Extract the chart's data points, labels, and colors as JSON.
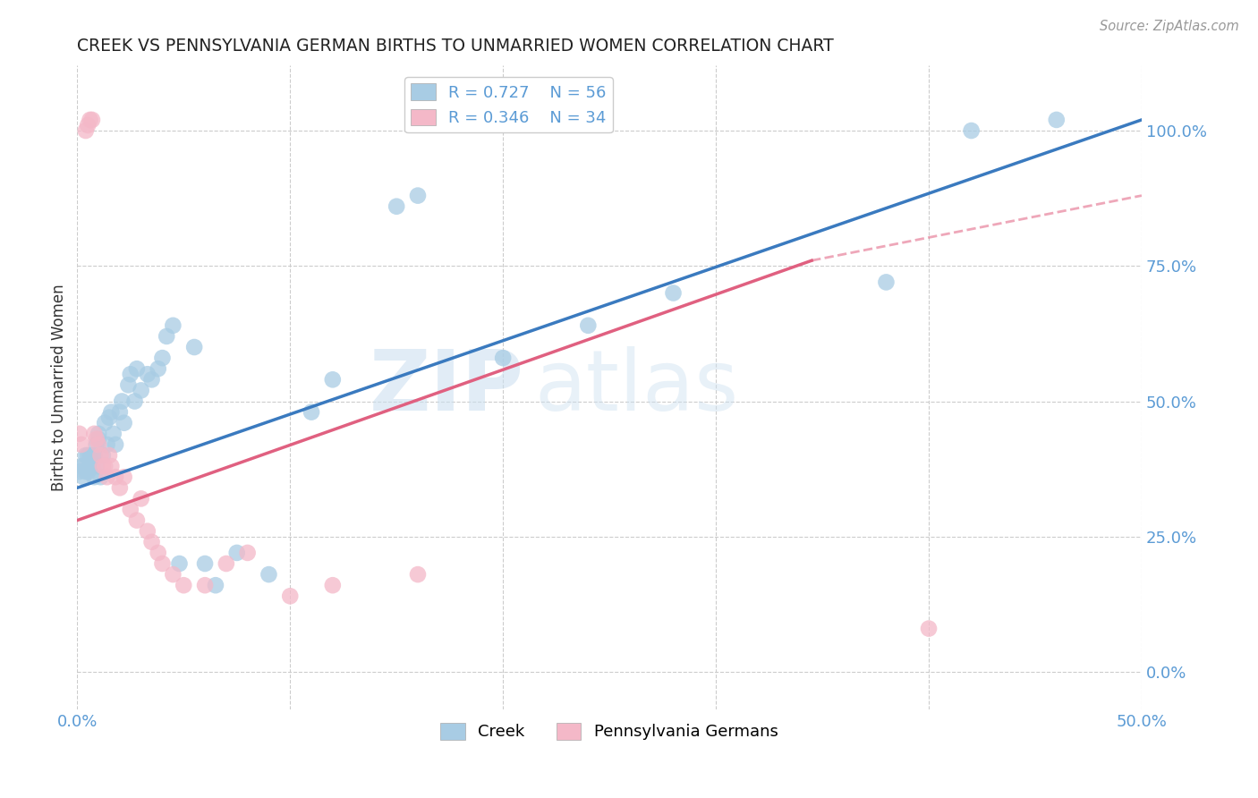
{
  "title": "CREEK VS PENNSYLVANIA GERMAN BIRTHS TO UNMARRIED WOMEN CORRELATION CHART",
  "source": "Source: ZipAtlas.com",
  "ylabel": "Births to Unmarried Women",
  "legend_labels": [
    "Creek",
    "Pennsylvania Germans"
  ],
  "creek_R": 0.727,
  "creek_N": 56,
  "pg_R": 0.346,
  "pg_N": 34,
  "xmin": 0.0,
  "xmax": 0.5,
  "ymin": -0.07,
  "ymax": 1.12,
  "yticks": [
    0.0,
    0.25,
    0.5,
    0.75,
    1.0
  ],
  "ytick_labels": [
    "0.0%",
    "25.0%",
    "50.0%",
    "75.0%",
    "100.0%"
  ],
  "xticks": [
    0.0,
    0.1,
    0.2,
    0.3,
    0.4,
    0.5
  ],
  "xtick_labels": [
    "0.0%",
    "",
    "",
    "",
    "",
    "50.0%"
  ],
  "creek_color": "#a8cce4",
  "pg_color": "#f4b8c8",
  "creek_line_color": "#3a7abf",
  "pg_line_color": "#e06080",
  "axis_color": "#5b9bd5",
  "grid_color": "#cccccc",
  "watermark_zip": "ZIP",
  "watermark_atlas": "atlas",
  "creek_x": [
    0.001,
    0.002,
    0.003,
    0.003,
    0.004,
    0.004,
    0.005,
    0.005,
    0.006,
    0.006,
    0.007,
    0.007,
    0.008,
    0.008,
    0.009,
    0.009,
    0.01,
    0.01,
    0.011,
    0.012,
    0.013,
    0.014,
    0.015,
    0.016,
    0.017,
    0.018,
    0.02,
    0.021,
    0.022,
    0.024,
    0.025,
    0.027,
    0.028,
    0.03,
    0.033,
    0.035,
    0.038,
    0.04,
    0.042,
    0.045,
    0.048,
    0.055,
    0.06,
    0.065,
    0.075,
    0.09,
    0.11,
    0.12,
    0.15,
    0.16,
    0.2,
    0.24,
    0.28,
    0.38,
    0.42,
    0.46
  ],
  "creek_y": [
    0.37,
    0.38,
    0.36,
    0.38,
    0.37,
    0.4,
    0.37,
    0.4,
    0.38,
    0.4,
    0.38,
    0.4,
    0.36,
    0.4,
    0.38,
    0.42,
    0.44,
    0.43,
    0.36,
    0.4,
    0.46,
    0.42,
    0.47,
    0.48,
    0.44,
    0.42,
    0.48,
    0.5,
    0.46,
    0.53,
    0.55,
    0.5,
    0.56,
    0.52,
    0.55,
    0.54,
    0.56,
    0.58,
    0.62,
    0.64,
    0.2,
    0.6,
    0.2,
    0.16,
    0.22,
    0.18,
    0.48,
    0.54,
    0.86,
    0.88,
    0.58,
    0.64,
    0.7,
    0.72,
    1.0,
    1.02
  ],
  "pg_x": [
    0.001,
    0.002,
    0.004,
    0.005,
    0.006,
    0.007,
    0.008,
    0.009,
    0.01,
    0.011,
    0.012,
    0.013,
    0.014,
    0.015,
    0.016,
    0.018,
    0.02,
    0.022,
    0.025,
    0.028,
    0.03,
    0.033,
    0.035,
    0.038,
    0.04,
    0.045,
    0.05,
    0.06,
    0.07,
    0.08,
    0.1,
    0.12,
    0.16,
    0.4
  ],
  "pg_y": [
    0.44,
    0.42,
    1.0,
    1.01,
    1.02,
    1.02,
    0.44,
    0.43,
    0.42,
    0.4,
    0.38,
    0.38,
    0.36,
    0.4,
    0.38,
    0.36,
    0.34,
    0.36,
    0.3,
    0.28,
    0.32,
    0.26,
    0.24,
    0.22,
    0.2,
    0.18,
    0.16,
    0.16,
    0.2,
    0.22,
    0.14,
    0.16,
    0.18,
    0.08
  ],
  "creek_trend": [
    0.0,
    0.5,
    0.34,
    1.02
  ],
  "pg_trend_solid": [
    0.0,
    0.345,
    0.28,
    0.76
  ],
  "pg_trend_dashed": [
    0.345,
    0.5,
    0.76,
    0.88
  ]
}
